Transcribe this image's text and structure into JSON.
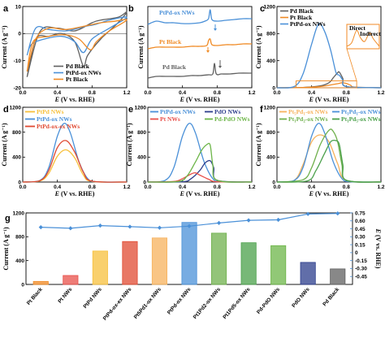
{
  "colors": {
    "pd_black": "#606060",
    "ptpd_blue": "#4a90d8",
    "pt_orange": "#f08a24",
    "ptpd_yellow": "#f7c03c",
    "ptpdox_red": "#e04a32",
    "pt_red": "#e8504a",
    "pdo_navy": "#2c3d8c",
    "pdpdo_green": "#6cb548",
    "pt5pd1": "#f7b25c",
    "pt1pd2": "#6fb04c",
    "bar_line": "#4a90d8"
  },
  "chart_data": [
    {
      "panel": "a",
      "type": "line",
      "xlabel_parts": [
        "E",
        " (V vs. RHE)"
      ],
      "ylabel": "Current (A g⁻¹)",
      "xlim": [
        0,
        1.2
      ],
      "ylim": [
        -20,
        10
      ],
      "xticks": [
        "0.0",
        "0.4",
        "0.8",
        "1.2"
      ],
      "yticks": [
        "10",
        "0",
        "-10",
        "-20"
      ],
      "series": [
        {
          "name": "Pd Black",
          "color": "#606060",
          "x": [
            0.05,
            0.2,
            0.4,
            0.6,
            0.8,
            0.9,
            1.1,
            1.2,
            1.1,
            0.9,
            0.75,
            0.7,
            0.6,
            0.45,
            0.3,
            0.15,
            0.05
          ],
          "y": [
            -16,
            0.8,
            2,
            1,
            4,
            5,
            6,
            8,
            4,
            -2,
            -8,
            -12,
            -3,
            0,
            -1,
            -2,
            -16
          ]
        },
        {
          "name": "PtPd-ox NWs",
          "color": "#4a90d8",
          "x": [
            0.05,
            0.15,
            0.3,
            0.5,
            0.7,
            0.85,
            1.0,
            1.2,
            1.0,
            0.8,
            0.7,
            0.6,
            0.45,
            0.25,
            0.1,
            0.05
          ],
          "y": [
            -8,
            2,
            1.5,
            1,
            2.5,
            3.5,
            5,
            6,
            2,
            -2,
            -7,
            -3,
            -1,
            -2,
            -4,
            -8
          ]
        },
        {
          "name": "Pt Black",
          "color": "#f08a24",
          "x": [
            0.05,
            0.15,
            0.3,
            0.5,
            0.75,
            0.9,
            1.05,
            1.2,
            1.0,
            0.85,
            0.78,
            0.65,
            0.5,
            0.3,
            0.12,
            0.05
          ],
          "y": [
            -14,
            -2,
            2,
            1.5,
            3,
            4,
            4.5,
            5,
            1,
            -3,
            -6,
            -2,
            -0.5,
            -1,
            -3,
            -14
          ]
        }
      ]
    },
    {
      "panel": "b",
      "type": "line",
      "xlabel_parts": [
        "E",
        " (V vs. RHE)"
      ],
      "ylabel": "Current (A g⁻¹)",
      "xlim": [
        0,
        1.2
      ],
      "xticks": [
        "0.0",
        "0.4",
        "0.8",
        "1.2"
      ],
      "series": [
        {
          "name": "PtPd-ox NWs",
          "color": "#4a90d8",
          "x": [
            0,
            0.1,
            0.2,
            0.3,
            0.4,
            0.5,
            0.6,
            0.66,
            0.7,
            0.72,
            0.74,
            0.8,
            0.9,
            1.0,
            1.1,
            1.2
          ],
          "y": [
            0.78,
            0.82,
            0.8,
            0.8,
            0.79,
            0.79,
            0.8,
            0.82,
            0.85,
            0.96,
            0.84,
            0.82,
            0.83,
            0.84,
            0.85,
            0.85
          ]
        },
        {
          "name": "Pt Black",
          "color": "#f08a24",
          "x": [
            0,
            0.1,
            0.2,
            0.3,
            0.4,
            0.5,
            0.6,
            0.68,
            0.7,
            0.72,
            0.74,
            0.8,
            0.9,
            1.0,
            1.1,
            1.2
          ],
          "y": [
            0.48,
            0.5,
            0.5,
            0.5,
            0.5,
            0.51,
            0.51,
            0.52,
            0.58,
            0.6,
            0.53,
            0.52,
            0.53,
            0.53,
            0.54,
            0.54
          ]
        },
        {
          "name": "Pd Black",
          "color": "#606060",
          "x": [
            0,
            0.1,
            0.2,
            0.3,
            0.4,
            0.5,
            0.6,
            0.7,
            0.75,
            0.77,
            0.79,
            0.85,
            0.95,
            1.05,
            1.2
          ],
          "y": [
            0.12,
            0.14,
            0.14,
            0.14,
            0.14,
            0.15,
            0.15,
            0.16,
            0.17,
            0.3,
            0.17,
            0.17,
            0.17,
            0.18,
            0.18
          ]
        }
      ]
    },
    {
      "panel": "c",
      "type": "line",
      "xlabel_parts": [
        "E",
        " (V vs. RHE)"
      ],
      "ylabel": "Current (A g⁻¹)",
      "xlim": [
        0,
        1.2
      ],
      "ylim": [
        0,
        1300
      ],
      "xticks": [
        "0.0",
        "0.4",
        "0.8",
        "1.2"
      ],
      "yticks": [
        "1200",
        "800",
        "400",
        "0"
      ],
      "inset_labels": [
        "Direct",
        "Indirect"
      ],
      "series": [
        {
          "name": "Pd Black",
          "color": "#606060",
          "x": [
            0,
            0.3,
            0.5,
            0.6,
            0.65,
            0.7,
            0.72,
            0.76,
            0.8,
            1.2
          ],
          "y": [
            0,
            5,
            30,
            80,
            160,
            240,
            250,
            150,
            20,
            0
          ]
        },
        {
          "name": "Pt Black",
          "color": "#f08a24",
          "x": [
            0,
            0.3,
            0.5,
            0.6,
            0.7,
            0.75,
            0.8,
            0.85,
            0.9,
            1.2
          ],
          "y": [
            0,
            5,
            20,
            40,
            65,
            80,
            70,
            40,
            10,
            0
          ]
        },
        {
          "name": "PtPd-ox NWs",
          "color": "#4a90d8",
          "x": [
            0,
            0.2,
            0.3,
            0.4,
            0.48,
            0.55,
            0.62,
            0.68,
            0.72,
            0.76,
            0.8,
            1.2
          ],
          "y": [
            0,
            20,
            220,
            700,
            1020,
            900,
            600,
            250,
            200,
            120,
            20,
            0
          ]
        }
      ]
    },
    {
      "panel": "d",
      "type": "line",
      "xlabel_parts": [
        "E",
        " (V vs. RHE)"
      ],
      "ylabel": "Current (A g⁻¹)",
      "xlim": [
        0,
        1.2
      ],
      "ylim": [
        0,
        1300
      ],
      "xticks": [
        "0.0",
        "0.4",
        "0.8",
        "1.2"
      ],
      "yticks": [
        "1200",
        "800",
        "400",
        "0"
      ],
      "series": [
        {
          "name": "PtPd NWs",
          "color": "#f7c03c",
          "x": [
            0,
            0.2,
            0.3,
            0.4,
            0.5,
            0.6,
            0.7,
            0.8,
            1.2
          ],
          "y": [
            0,
            20,
            150,
            450,
            560,
            420,
            120,
            10,
            0
          ]
        },
        {
          "name": "PtPd-ox NWs",
          "color": "#4a90d8",
          "x": [
            0,
            0.2,
            0.3,
            0.4,
            0.48,
            0.55,
            0.65,
            0.75,
            0.85,
            1.2
          ],
          "y": [
            0,
            30,
            250,
            800,
            1020,
            850,
            350,
            60,
            5,
            0
          ]
        },
        {
          "name": "PtPd-ox-ex NWs",
          "color": "#e04a32",
          "x": [
            0,
            0.2,
            0.3,
            0.4,
            0.5,
            0.6,
            0.7,
            0.8,
            1.2
          ],
          "y": [
            0,
            25,
            200,
            600,
            720,
            520,
            170,
            15,
            0
          ]
        }
      ]
    },
    {
      "panel": "e",
      "type": "line",
      "xlabel_parts": [
        "E",
        " (V vs. RHE)"
      ],
      "ylabel": "Current (A g⁻¹)",
      "xlim": [
        0,
        1.2
      ],
      "ylim": [
        0,
        1300
      ],
      "xticks": [
        "0.0",
        "0.4",
        "0.8",
        "1.2"
      ],
      "yticks": [
        "1200",
        "800",
        "400",
        "0"
      ],
      "series": [
        {
          "name": "PtPd-ox NWs",
          "color": "#4a90d8",
          "x": [
            0,
            0.2,
            0.3,
            0.4,
            0.48,
            0.55,
            0.65,
            0.75,
            0.85,
            1.2
          ],
          "y": [
            0,
            30,
            250,
            800,
            1020,
            850,
            350,
            60,
            5,
            0
          ]
        },
        {
          "name": "PdO NWs",
          "color": "#2c3d8c",
          "x": [
            0,
            0.4,
            0.5,
            0.6,
            0.66,
            0.72,
            0.76,
            0.8,
            1.2
          ],
          "y": [
            0,
            5,
            60,
            200,
            330,
            370,
            250,
            30,
            0
          ]
        },
        {
          "name": "Pt NWs",
          "color": "#e8504a",
          "x": [
            0,
            0.3,
            0.4,
            0.5,
            0.55,
            0.6,
            0.7,
            0.8,
            1.2
          ],
          "y": [
            0,
            10,
            60,
            140,
            160,
            120,
            50,
            5,
            0
          ]
        },
        {
          "name": "Pd-PdO NWs",
          "color": "#6cb548",
          "x": [
            0,
            0.35,
            0.45,
            0.55,
            0.62,
            0.68,
            0.72,
            0.75,
            0.8,
            1.2
          ],
          "y": [
            0,
            10,
            100,
            350,
            550,
            650,
            640,
            300,
            30,
            0
          ]
        }
      ]
    },
    {
      "panel": "f",
      "type": "line",
      "xlabel_parts": [
        "E",
        " (V vs. RHE)"
      ],
      "ylabel": "Current (A g⁻¹)",
      "xlim": [
        0,
        1.2
      ],
      "ylim": [
        0,
        1300
      ],
      "xticks": [
        "0.0",
        "0.4",
        "0.8",
        "1.2"
      ],
      "yticks": [
        "1200",
        "800",
        "400",
        "0"
      ],
      "series": [
        {
          "name": "Pt5Pd1-ox NWs",
          "color": "#f7b25c",
          "x": [
            0,
            0.2,
            0.3,
            0.4,
            0.5,
            0.6,
            0.7,
            0.8,
            1.2
          ],
          "y": [
            0,
            30,
            300,
            700,
            820,
            700,
            320,
            30,
            0
          ]
        },
        {
          "name": "Pt1Pd1-ox NWs",
          "color": "#4a90d8",
          "x": [
            0,
            0.2,
            0.3,
            0.4,
            0.48,
            0.55,
            0.65,
            0.75,
            0.85,
            1.2
          ],
          "y": [
            0,
            30,
            250,
            800,
            1020,
            850,
            350,
            60,
            5,
            0
          ]
        },
        {
          "name": "Pt1Pd2-ox NWs",
          "color": "#6fb04c",
          "x": [
            0,
            0.3,
            0.4,
            0.5,
            0.6,
            0.65,
            0.7,
            0.75,
            0.8,
            1.2
          ],
          "y": [
            0,
            40,
            250,
            650,
            900,
            880,
            700,
            300,
            30,
            0
          ]
        },
        {
          "name": "Pt1Pd5-ox NWs",
          "color": "#4aa04a",
          "x": [
            0,
            0.35,
            0.45,
            0.55,
            0.62,
            0.68,
            0.72,
            0.76,
            0.8,
            1.2
          ],
          "y": [
            0,
            20,
            200,
            500,
            700,
            720,
            650,
            300,
            30,
            0
          ]
        }
      ]
    },
    {
      "panel": "g",
      "type": "bar",
      "ylabel": "Current (A g⁻¹)",
      "y2label": "E (V vs. RHE)",
      "ylim": [
        0,
        1200
      ],
      "yticks": [
        "1200",
        "800",
        "400",
        "0"
      ],
      "y2lim": [
        -0.6,
        0.75
      ],
      "y2ticks": [
        "0.75",
        "0.60",
        "0.45",
        "0.30",
        "0.15",
        "0",
        "-0.15",
        "-0.30",
        "-0.45"
      ],
      "categories": [
        "Pt Black",
        "Pt NWs",
        "PtPd NWs",
        "PtPd-ox-ex NWs",
        "Pt5Pd1-ox NWs",
        "PtPd-ox NWs",
        "Pt1Pd2-ox NWs",
        "Pt1Pd5-ox NWs",
        "Pd-PdO NWs",
        "PdO NWs",
        "Pd Black"
      ],
      "values": [
        50,
        150,
        560,
        720,
        780,
        1040,
        860,
        700,
        650,
        370,
        260
      ],
      "bar_colors": [
        "#f08a24",
        "#e8504a",
        "#f7c03c",
        "#e04a32",
        "#f7b25c",
        "#4a90d8",
        "#6fb04c",
        "#4aa04a",
        "#6cb548",
        "#2c3d8c",
        "#606060"
      ],
      "line_values": [
        0.48,
        0.46,
        0.51,
        0.49,
        0.47,
        0.5,
        0.56,
        0.61,
        0.62,
        0.73,
        0.74
      ]
    }
  ],
  "panel_letters": [
    "a",
    "b",
    "c",
    "d",
    "e",
    "f",
    "g"
  ],
  "legends": {
    "a": [
      "Pd Black",
      "PtPd-ox NWs",
      "Pt Black"
    ],
    "b": [
      "PtPd-ox NWs",
      "Pt Black",
      "Pd Black"
    ],
    "c": [
      "Pd Black",
      "Pt Black",
      "PtPd-ox NWs"
    ],
    "d": [
      "PtPd NWs",
      "PtPd-ox NWs",
      "PtPd-ox-ex NWs"
    ],
    "e": [
      "PtPd-ox NWs",
      "PdO NWs",
      "Pt NWs",
      "Pd-PdO NWs"
    ],
    "f": [
      "Pt5Pd1-ox NWs",
      "Pt1Pd1-ox NWs",
      "Pt1Pd2-ox NWs",
      "Pt1Pd5-ox NWs"
    ]
  }
}
